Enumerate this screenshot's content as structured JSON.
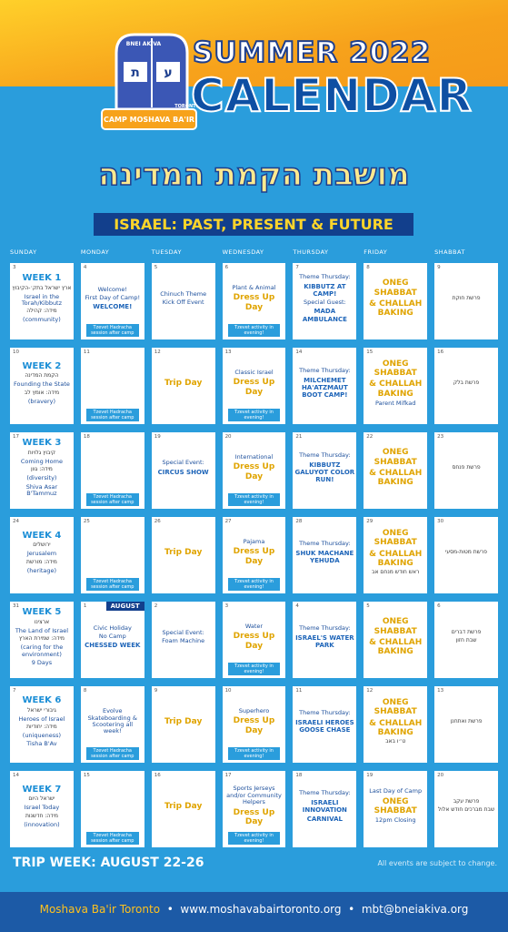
{
  "header": {
    "logo_top": "BNEI AKIVA",
    "logo_letters": [
      "ת",
      "ע"
    ],
    "logo_name": "CAMP MOSHAVA BA'IR",
    "logo_city": "TORONTO",
    "summer": "SUMMER 2022",
    "calendar": "CALENDAR",
    "hebrew_title": "מושבת הקמת המדינה",
    "banner": "ISRAEL: PAST, PRESENT & FUTURE"
  },
  "day_names": [
    "SUNDAY",
    "MONDAY",
    "TUESDAY",
    "WEDNESDAY",
    "THURSDAY",
    "FRIDAY",
    "SHABBAT"
  ],
  "weeks": [
    [
      {
        "date": "3",
        "lines": [
          "WEEK 1",
          "ארץ ישראל בתק׳-הקיבוץ",
          "Israel in the Torah/Kibbutz",
          "מידה: קהילה",
          "(community)"
        ]
      },
      {
        "date": "4",
        "lines": [
          "Welcome!",
          "First Day of Camp!",
          "WELCOME!"
        ],
        "badge": "Tzevet Hadracha session after camp"
      },
      {
        "date": "5",
        "lines": [
          "Chinuch Theme",
          "Kick Off Event"
        ]
      },
      {
        "date": "6",
        "lines": [
          "Plant & Animal",
          "Dress Up Day"
        ],
        "badge": "Tzevet activity in evening!"
      },
      {
        "date": "7",
        "lines": [
          "Theme Thursday:",
          "KIBBUTZ AT CAMP!",
          "Special Guest:",
          "MADA AMBULANCE"
        ]
      },
      {
        "date": "8",
        "lines": [
          "ONEG SHABBAT",
          "& CHALLAH BAKING"
        ]
      },
      {
        "date": "9",
        "lines": [
          "פרשת חוקת"
        ]
      }
    ],
    [
      {
        "date": "10",
        "lines": [
          "WEEK 2",
          "הקמת המדינה",
          "Founding the State",
          "מידה: אומץ לב",
          "(bravery)"
        ]
      },
      {
        "date": "11",
        "lines": [],
        "badge": "Tzevet Hadracha session after camp"
      },
      {
        "date": "12",
        "lines": [
          "Trip Day"
        ]
      },
      {
        "date": "13",
        "lines": [
          "Classic Israel",
          "Dress Up Day"
        ],
        "badge": "Tzevet activity in evening!"
      },
      {
        "date": "14",
        "lines": [
          "Theme Thursday:",
          "MILCHEMET HA'ATZMAUT BOOT CAMP!"
        ]
      },
      {
        "date": "15",
        "lines": [
          "ONEG SHABBAT",
          "& CHALLAH BAKING",
          "Parent Mifkad"
        ]
      },
      {
        "date": "16",
        "lines": [
          "פרשת בלק"
        ]
      }
    ],
    [
      {
        "date": "17",
        "lines": [
          "WEEK 3",
          "קיבוץ גלויות",
          "Coming Home",
          "מידה: גוון",
          "(diversity)",
          "Shiva Asar B'Tammuz"
        ]
      },
      {
        "date": "18",
        "lines": [],
        "badge": "Tzevet Hadracha session after camp"
      },
      {
        "date": "19",
        "lines": [
          "Special Event:",
          "CIRCUS SHOW"
        ]
      },
      {
        "date": "20",
        "lines": [
          "International",
          "Dress Up Day"
        ],
        "badge": "Tzevet activity in evening!"
      },
      {
        "date": "21",
        "lines": [
          "Theme Thursday:",
          "KIBBUTZ GALUYOT COLOR RUN!"
        ]
      },
      {
        "date": "22",
        "lines": [
          "ONEG SHABBAT",
          "& CHALLAH BAKING"
        ]
      },
      {
        "date": "23",
        "lines": [
          "פרשת פנחס"
        ]
      }
    ],
    [
      {
        "date": "24",
        "lines": [
          "WEEK 4",
          "ירושלים",
          "Jerusalem",
          "מידה: מורשת",
          "(heritage)"
        ]
      },
      {
        "date": "25",
        "lines": [],
        "badge": "Tzevet Hadracha session after camp"
      },
      {
        "date": "26",
        "lines": [
          "Trip Day"
        ]
      },
      {
        "date": "27",
        "lines": [
          "Pajama",
          "Dress Up Day"
        ],
        "badge": "Tzevet activity in evening!"
      },
      {
        "date": "28",
        "lines": [
          "Theme Thursday:",
          "SHUK MACHANE YEHUDA"
        ]
      },
      {
        "date": "29",
        "lines": [
          "ONEG SHABBAT",
          "& CHALLAH BAKING",
          "ראש חודש מנחם אב"
        ]
      },
      {
        "date": "30",
        "lines": [
          "פרשת מטות-מסעי"
        ]
      }
    ],
    [
      {
        "date": "31",
        "lines": [
          "WEEK 5",
          "ארצינו",
          "The Land of Israel",
          "מידה: שמירת הארץ",
          "(caring for the environment)",
          "9 Days"
        ]
      },
      {
        "date": "1",
        "month": "AUGUST",
        "lines": [
          "Civic Holiday",
          "No Camp",
          "CHESSED WEEK"
        ]
      },
      {
        "date": "2",
        "lines": [
          "Special Event:",
          "Foam Machine"
        ]
      },
      {
        "date": "3",
        "lines": [
          "Water",
          "Dress Up Day"
        ],
        "badge": "Tzevet activity in evening!"
      },
      {
        "date": "4",
        "lines": [
          "Theme Thursday:",
          "ISRAEL'S WATER PARK"
        ]
      },
      {
        "date": "5",
        "lines": [
          "ONEG SHABBAT",
          "& CHALLAH BAKING"
        ]
      },
      {
        "date": "6",
        "lines": [
          "פרשת דברים",
          "שבת חזון"
        ]
      }
    ],
    [
      {
        "date": "7",
        "lines": [
          "WEEK 6",
          "גיבורי ישראל",
          "Heroes of Israel",
          "מידה: יחודיות",
          "(uniqueness)",
          "Tisha B'Av"
        ]
      },
      {
        "date": "8",
        "lines": [
          "Evolve Skateboarding & Scootering all week!"
        ],
        "badge": "Tzevet Hadracha session after camp"
      },
      {
        "date": "9",
        "lines": [
          "Trip Day"
        ]
      },
      {
        "date": "10",
        "lines": [
          "Superhero",
          "Dress Up Day"
        ],
        "badge": "Tzevet activity in evening!"
      },
      {
        "date": "11",
        "lines": [
          "Theme Thursday:",
          "ISRAELI HEROES GOOSE CHASE"
        ]
      },
      {
        "date": "12",
        "lines": [
          "ONEG SHABBAT",
          "& CHALLAH BAKING",
          "ט״ו באב"
        ]
      },
      {
        "date": "13",
        "lines": [
          "פרשת ואתחנן"
        ]
      }
    ],
    [
      {
        "date": "14",
        "lines": [
          "WEEK 7",
          "ישראל היום",
          "Israel Today",
          "מידה: חדשנות",
          "(innovation)"
        ]
      },
      {
        "date": "15",
        "lines": [],
        "badge": "Tzevet Hadracha session after camp"
      },
      {
        "date": "16",
        "lines": [
          "Trip Day"
        ]
      },
      {
        "date": "17",
        "lines": [
          "Sports Jerseys and/or Community Helpers",
          "Dress Up Day"
        ],
        "badge": "Tzevet activity in evening!"
      },
      {
        "date": "18",
        "lines": [
          "Theme Thursday:",
          "ISRAELI INNOVATION",
          "CARNIVAL"
        ]
      },
      {
        "date": "19",
        "lines": [
          "Last Day of Camp",
          "ONEG SHABBAT",
          "12pm Closing"
        ]
      },
      {
        "date": "20",
        "lines": [
          "פרשת עקב",
          "שבת מברכים חודש אלול"
        ]
      }
    ]
  ],
  "trip_week": "TRIP WEEK: AUGUST 22-26",
  "disclaimer": "All events are subject to change.",
  "footer": {
    "org": "Moshava Ba'ir Toronto",
    "website": "www.moshavabairtoronto.org",
    "email": "mbt@bneiakiva.org"
  }
}
